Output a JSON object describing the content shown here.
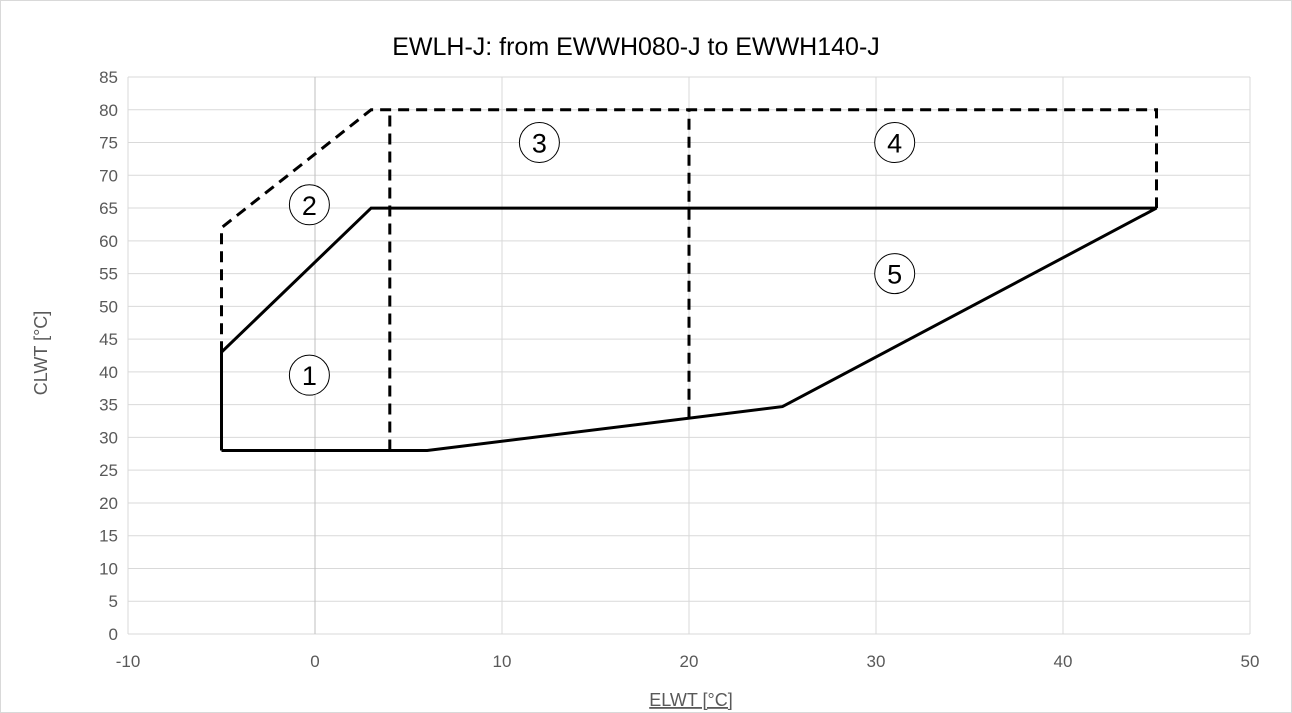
{
  "chart_data": {
    "type": "line",
    "title": "EWLH-J: from EWWH080-J to EWWH140-J",
    "xlabel": "ELWT [°C]",
    "ylabel": "CLWT [°C]",
    "xlim": [
      -10,
      50
    ],
    "ylim": [
      0,
      85
    ],
    "x_ticks": [
      -10,
      0,
      10,
      20,
      30,
      40,
      50
    ],
    "y_ticks": [
      0,
      5,
      10,
      15,
      20,
      25,
      30,
      35,
      40,
      45,
      50,
      55,
      60,
      65,
      70,
      75,
      80,
      85
    ],
    "grid": true,
    "legend": "none",
    "colors": {
      "line": "#000000",
      "grid": "#d9d9d9",
      "zero_axis": "#bfbfbf",
      "text": "#595959"
    },
    "series": [
      {
        "style": "solid",
        "points": [
          [
            -5,
            28
          ],
          [
            6,
            28
          ],
          [
            25,
            34.7
          ],
          [
            45,
            65
          ],
          [
            3,
            65
          ],
          [
            -5,
            43
          ],
          [
            -5,
            28
          ]
        ]
      },
      {
        "style": "dashed",
        "points": [
          [
            -5,
            43
          ],
          [
            -5,
            62
          ],
          [
            3,
            80
          ],
          [
            45,
            80
          ],
          [
            45,
            65
          ]
        ]
      },
      {
        "style": "dashed",
        "points": [
          [
            4,
            28
          ],
          [
            4,
            80
          ]
        ]
      },
      {
        "style": "dashed",
        "points": [
          [
            20,
            33
          ],
          [
            20,
            80
          ]
        ]
      }
    ],
    "annotations": [
      {
        "text": "1",
        "x": -0.3,
        "y": 39.5
      },
      {
        "text": "2",
        "x": -0.3,
        "y": 65.5
      },
      {
        "text": "3",
        "x": 12,
        "y": 75
      },
      {
        "text": "4",
        "x": 31,
        "y": 75
      },
      {
        "text": "5",
        "x": 31,
        "y": 55
      }
    ]
  }
}
